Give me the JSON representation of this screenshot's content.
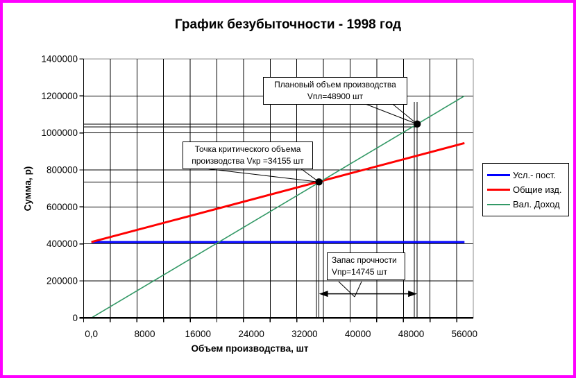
{
  "frame": {
    "border_color": "#FF00FF",
    "background": "#FFFFFF"
  },
  "title": "График безубыточности - 1998 год",
  "axes": {
    "y_title": "Сумма, р)",
    "x_title": "Объем производства, шт"
  },
  "legend": {
    "items": [
      {
        "label": "Усл.- пост.",
        "color": "#0000FF",
        "line_width": 3
      },
      {
        "label": "Общие изд.",
        "color": "#FF0000",
        "line_width": 3
      },
      {
        "label": "Вал. Доход",
        "color": "#339966",
        "line_width": 2
      }
    ]
  },
  "callouts": {
    "planned": {
      "line1": "Плановый объем производства",
      "line2": "Vпл=48900 шт"
    },
    "critical": {
      "line1": "Точка критического объема",
      "line2": "производства Vкр =34155 шт"
    },
    "safety": {
      "line1": "Запас прочности",
      "line2": "Vпр=14745 шт"
    }
  },
  "chart_data": {
    "type": "line",
    "title": "График безубыточности - 1998 год",
    "xlabel": "Объем производства, шт",
    "ylabel": "Сумма, р)",
    "xlim": [
      0,
      56000
    ],
    "ylim": [
      0,
      1400000
    ],
    "x_tick_labels": [
      "0,0",
      "8000",
      "16000",
      "24000",
      "32000",
      "40000",
      "48000",
      "56000"
    ],
    "y_tick_labels": [
      "0",
      "200000",
      "400000",
      "600000",
      "800000",
      "1000000",
      "1200000",
      "1400000"
    ],
    "x_tick_step": 8000,
    "x_minor_step": 4000,
    "y_tick_step": 200000,
    "grid": true,
    "legend_position": "right",
    "series": [
      {
        "name": "Усл.- пост.",
        "color": "#0000FF",
        "width": 3,
        "points": [
          [
            0,
            410000
          ],
          [
            56000,
            410000
          ]
        ]
      },
      {
        "name": "Общие изд.",
        "color": "#FF0000",
        "width": 3,
        "points": [
          [
            0,
            410000
          ],
          [
            56000,
            945000
          ]
        ]
      },
      {
        "name": "Вал. Доход",
        "color": "#339966",
        "width": 1.6,
        "points": [
          [
            0,
            0
          ],
          [
            56000,
            1200000
          ]
        ]
      }
    ],
    "markers": [
      {
        "name": "break-even-point",
        "x": 34155,
        "y": 735000
      },
      {
        "name": "planned-volume-point",
        "x": 48900,
        "y": 1048000
      }
    ],
    "span_arrow": {
      "x_from": 34155,
      "x_to": 48900,
      "y": 130000,
      "label": "Запас прочности Vпр=14745 шт"
    },
    "annotations": {
      "planned_volume": 48900,
      "critical_volume": 34155,
      "safety_margin": 14745
    }
  }
}
